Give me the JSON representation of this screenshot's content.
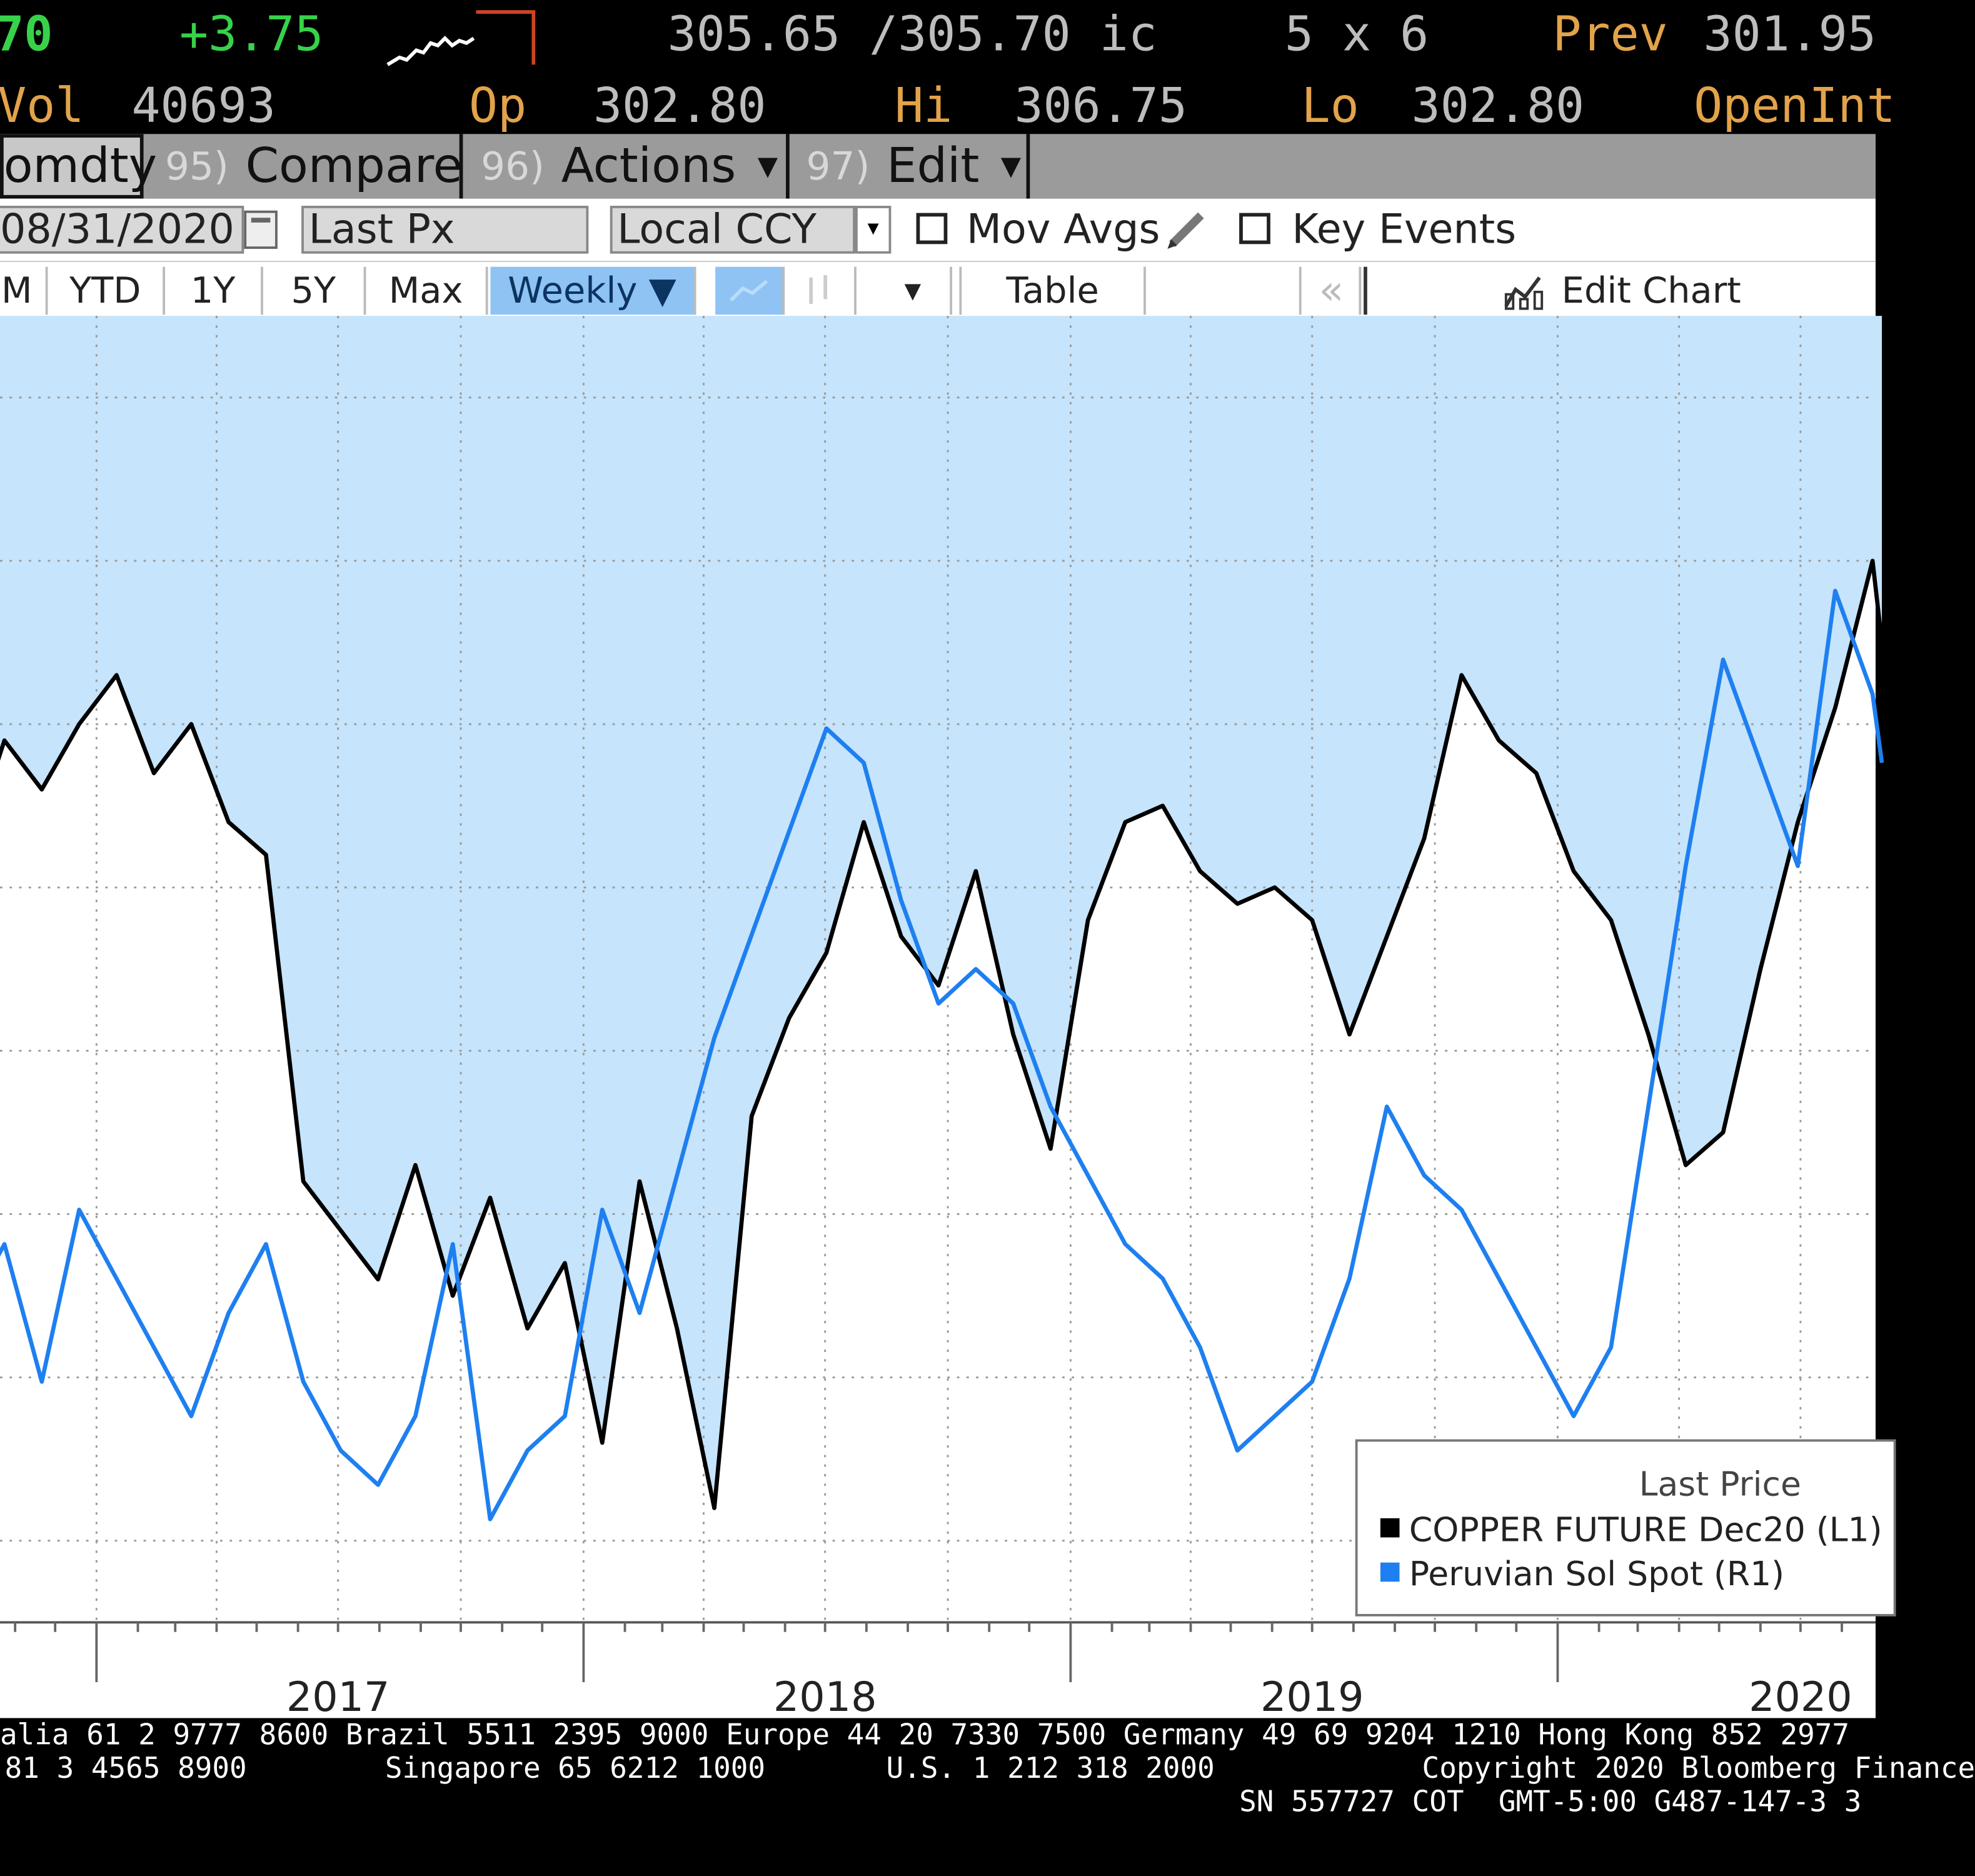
{
  "quote": {
    "last": "70",
    "change": "+3.75",
    "bid_ask": "305.65 /305.70 ic",
    "size": "5 x 6",
    "prev_label": "Prev",
    "prev_value": "301.95",
    "vol_label": "Vol",
    "vol_value": "40693",
    "open_label": "Op",
    "open_value": "302.80",
    "high_label": "Hi",
    "high_value": "306.75",
    "low_label": "Lo",
    "low_value": "302.80",
    "openint_label": "OpenInt"
  },
  "menu": {
    "security_tab": "omdty",
    "compare_num": "95)",
    "compare_label": "Compare",
    "actions_num": "96)",
    "actions_label": "Actions",
    "edit_num": "97)",
    "edit_label": "Edit"
  },
  "settings": {
    "date": "08/31/2020",
    "field": "Last Px",
    "currency": "Local CCY",
    "mov_avgs": "Mov Avgs",
    "key_events": "Key Events"
  },
  "periods": {
    "m": "M",
    "ytd": "YTD",
    "y1": "1Y",
    "y5": "5Y",
    "max": "Max",
    "freq": "Weekly ▼",
    "table": "Table",
    "collapse": "«",
    "edit_chart": "Edit Chart"
  },
  "colors": {
    "copper_line": "#000000",
    "sol_line": "#1e7ff0",
    "fill": "#c6e4fb",
    "menu_bg": "#9b9b9b",
    "quote_amber": "#e2a34a",
    "quote_green": "#37d24a"
  },
  "chart_data": {
    "type": "line",
    "x_axis": "dates",
    "xticks": [
      "2017",
      "2018",
      "2019",
      "2020"
    ],
    "grid": true,
    "legend_title": "Last Price",
    "legend_position": "bottom-right",
    "fill_between": true,
    "series": [
      {
        "name": "COPPER FUTURE Dec20 (L1)",
        "axis": "left",
        "color": "#000000",
        "x": [
          "2016-08-29",
          "2016-09-26",
          "2016-10-24",
          "2016-11-21",
          "2016-12-19",
          "2017-01-16",
          "2017-02-13",
          "2017-03-13",
          "2017-04-10",
          "2017-05-08",
          "2017-06-05",
          "2017-07-03",
          "2017-07-31",
          "2017-08-28",
          "2017-09-25",
          "2017-10-23",
          "2017-11-20",
          "2017-12-18",
          "2018-01-15",
          "2018-02-12",
          "2018-03-12",
          "2018-04-09",
          "2018-05-07",
          "2018-06-04",
          "2018-07-02",
          "2018-07-30",
          "2018-08-27",
          "2018-09-24",
          "2018-10-22",
          "2018-11-19",
          "2018-12-17",
          "2019-01-14",
          "2019-02-11",
          "2019-03-11",
          "2019-04-08",
          "2019-05-06",
          "2019-06-03",
          "2019-07-01",
          "2019-07-29",
          "2019-08-26",
          "2019-09-23",
          "2019-10-21",
          "2019-11-18",
          "2019-12-16",
          "2020-01-13",
          "2020-02-10",
          "2020-03-09",
          "2020-04-06",
          "2020-05-04",
          "2020-06-01",
          "2020-06-29",
          "2020-07-27",
          "2020-08-24",
          "2020-08-31"
        ],
        "y": [
          217,
          212,
          219,
          216,
          220,
          223,
          217,
          220,
          214,
          212,
          192,
          189,
          186,
          193,
          185,
          191,
          183,
          187,
          176,
          192,
          183,
          172,
          196,
          202,
          206,
          214,
          207,
          204,
          211,
          201,
          194,
          208,
          214,
          215,
          211,
          209,
          210,
          208,
          201,
          207,
          213,
          223,
          219,
          217,
          211,
          208,
          201,
          193,
          195,
          205,
          214,
          221,
          230,
          225
        ]
      },
      {
        "name": "Peruvian Sol Spot (R1)",
        "axis": "right",
        "color": "#1e7ff0",
        "x": [
          "2016-08-29",
          "2016-09-26",
          "2016-10-24",
          "2016-11-21",
          "2016-12-19",
          "2017-01-16",
          "2017-02-13",
          "2017-03-13",
          "2017-04-10",
          "2017-05-08",
          "2017-06-05",
          "2017-07-03",
          "2017-07-31",
          "2017-08-28",
          "2017-09-25",
          "2017-10-23",
          "2017-11-20",
          "2017-12-18",
          "2018-01-15",
          "2018-02-12",
          "2018-03-12",
          "2018-04-09",
          "2018-05-07",
          "2018-06-04",
          "2018-07-02",
          "2018-07-30",
          "2018-08-27",
          "2018-09-24",
          "2018-10-22",
          "2018-11-19",
          "2018-12-17",
          "2019-01-14",
          "2019-02-11",
          "2019-03-11",
          "2019-04-08",
          "2019-05-06",
          "2019-06-03",
          "2019-07-01",
          "2019-07-29",
          "2019-08-26",
          "2019-09-23",
          "2019-10-21",
          "2019-11-18",
          "2019-12-16",
          "2020-01-13",
          "2020-02-10",
          "2020-03-09",
          "2020-04-06",
          "2020-05-04",
          "2020-06-01",
          "2020-06-29",
          "2020-07-27",
          "2020-08-24",
          "2020-08-31"
        ],
        "y": [
          3.38,
          3.34,
          3.36,
          3.32,
          3.37,
          3.35,
          3.33,
          3.31,
          3.34,
          3.36,
          3.32,
          3.3,
          3.29,
          3.31,
          3.36,
          3.28,
          3.3,
          3.31,
          3.37,
          3.34,
          3.38,
          3.42,
          3.45,
          3.48,
          3.51,
          3.5,
          3.46,
          3.43,
          3.44,
          3.43,
          3.4,
          3.38,
          3.36,
          3.35,
          3.33,
          3.3,
          3.31,
          3.32,
          3.35,
          3.4,
          3.38,
          3.37,
          3.35,
          3.33,
          3.31,
          3.33,
          3.4,
          3.47,
          3.53,
          3.5,
          3.47,
          3.55,
          3.52,
          3.5
        ]
      }
    ]
  },
  "footer": {
    "line1": "alia 61 2 9777 8600 Brazil 5511 2395 9000 Europe 44 20 7330 7500 Germany 49 69 9204 1210 Hong Kong 852 2977",
    "line2": "81 3 4565 8900        Singapore 65 6212 1000       U.S. 1 212 318 2000            Copyright 2020 Bloomberg Finance",
    "line3": "SN 557727 COT  GMT-5:00 G487-147-3 3"
  }
}
